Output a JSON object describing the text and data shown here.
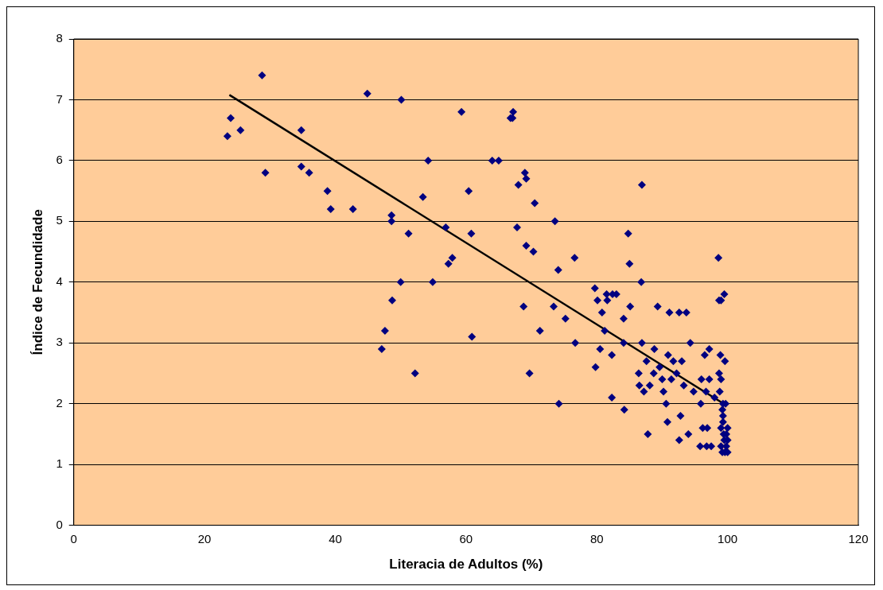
{
  "chart_data": {
    "type": "scatter",
    "xlabel": "Literacia de Adultos (%)",
    "ylabel": "Índice de Fecundidade",
    "xlim": [
      0,
      120
    ],
    "xticks": [
      0,
      20,
      40,
      60,
      80,
      100,
      120
    ],
    "ylim": [
      0,
      8
    ],
    "yticks": [
      0,
      1,
      2,
      3,
      4,
      5,
      6,
      7,
      8
    ],
    "grid": "y",
    "legend": false,
    "marker": "diamond",
    "series": [
      {
        "color": "#000080",
        "x": [
          23.5,
          24,
          25.5,
          28.8,
          29.3,
          34.8,
          34.8,
          36,
          38.8,
          39.3,
          42.7,
          44.9,
          48.6,
          48.6,
          48.7,
          47.1,
          47.6,
          50,
          50.1,
          51.2,
          52.2,
          53.4,
          54.2,
          54.9,
          56.9,
          57.3,
          57.9,
          59.3,
          60.4,
          60.8,
          60.9,
          64,
          65,
          66.8,
          67.2,
          67.1,
          67.8,
          68,
          68.8,
          69,
          69.2,
          69.2,
          69.7,
          70.3,
          70.5,
          71.3,
          73.4,
          73.6,
          74.1,
          74.2,
          75.2,
          76.6,
          76.7,
          79.7,
          79.8,
          80.1,
          80.5,
          80.8,
          81.2,
          81.5,
          81.6,
          82.3,
          82.3,
          82.4,
          83,
          84.1,
          84.1,
          84.2,
          84.8,
          85,
          85.1,
          86.4,
          86.5,
          86.8,
          86.9,
          86.9,
          87.2,
          87.6,
          87.8,
          88.1,
          88.8,
          88.7,
          89.3,
          89.6,
          90,
          90.2,
          90.6,
          90.8,
          90.9,
          91.1,
          91.4,
          91.7,
          92.2,
          92.6,
          92.6,
          92.8,
          93,
          93.3,
          93.7,
          94,
          94.3,
          94.8,
          95.9,
          95.8,
          96,
          96.2,
          96.5,
          96.7,
          96.8,
          96.9,
          97.2,
          97.2,
          97.5,
          98,
          98.6,
          98.7,
          98.7,
          98.8,
          98.9,
          99,
          99,
          99,
          99,
          99.2,
          99.3,
          99.3,
          99.4,
          99.5,
          99.5,
          99.6,
          99.6,
          99.8,
          99.8,
          100,
          100,
          100,
          99.3,
          99.2,
          99.7
        ],
        "values": [
          6.4,
          6.7,
          6.5,
          7.4,
          5.8,
          6.5,
          5.9,
          5.8,
          5.5,
          5.2,
          5.2,
          7.1,
          5.1,
          5.0,
          3.7,
          2.9,
          3.2,
          4.0,
          7.0,
          4.8,
          2.5,
          5.4,
          6.0,
          4.0,
          4.9,
          4.3,
          4.4,
          6.8,
          5.5,
          4.8,
          3.1,
          6.0,
          6.0,
          6.7,
          6.8,
          6.7,
          4.9,
          5.6,
          3.6,
          5.8,
          5.7,
          4.6,
          2.5,
          4.5,
          5.3,
          3.2,
          3.6,
          5.0,
          4.2,
          2.0,
          3.4,
          4.4,
          3.0,
          3.9,
          2.6,
          3.7,
          2.9,
          3.5,
          3.2,
          3.8,
          3.7,
          2.8,
          2.1,
          3.8,
          3.8,
          3.4,
          3.0,
          1.9,
          4.8,
          4.3,
          3.6,
          2.5,
          2.3,
          4.0,
          5.6,
          3.0,
          2.2,
          2.7,
          1.5,
          2.3,
          2.9,
          2.5,
          3.6,
          2.6,
          2.4,
          2.2,
          2.0,
          1.7,
          2.8,
          3.5,
          2.4,
          2.7,
          2.5,
          1.4,
          3.5,
          1.8,
          2.7,
          2.3,
          3.5,
          1.5,
          3.0,
          2.2,
          2.0,
          1.3,
          2.4,
          1.6,
          2.8,
          2.2,
          1.3,
          1.6,
          2.9,
          2.4,
          1.3,
          2.1,
          4.4,
          3.7,
          2.5,
          2.2,
          2.8,
          3.7,
          2.4,
          1.3,
          1.6,
          1.9,
          1.8,
          1.7,
          1.5,
          1.4,
          3.8,
          2.7,
          1.2,
          1.3,
          1.5,
          1.2,
          1.4,
          1.6,
          2.0,
          1.2,
          2.0
        ]
      },
      {
        "type": "line",
        "color": "#000000",
        "marker": "none",
        "x": [
          23.8,
          99.7
        ],
        "values": [
          7.08,
          1.98
        ]
      }
    ]
  }
}
